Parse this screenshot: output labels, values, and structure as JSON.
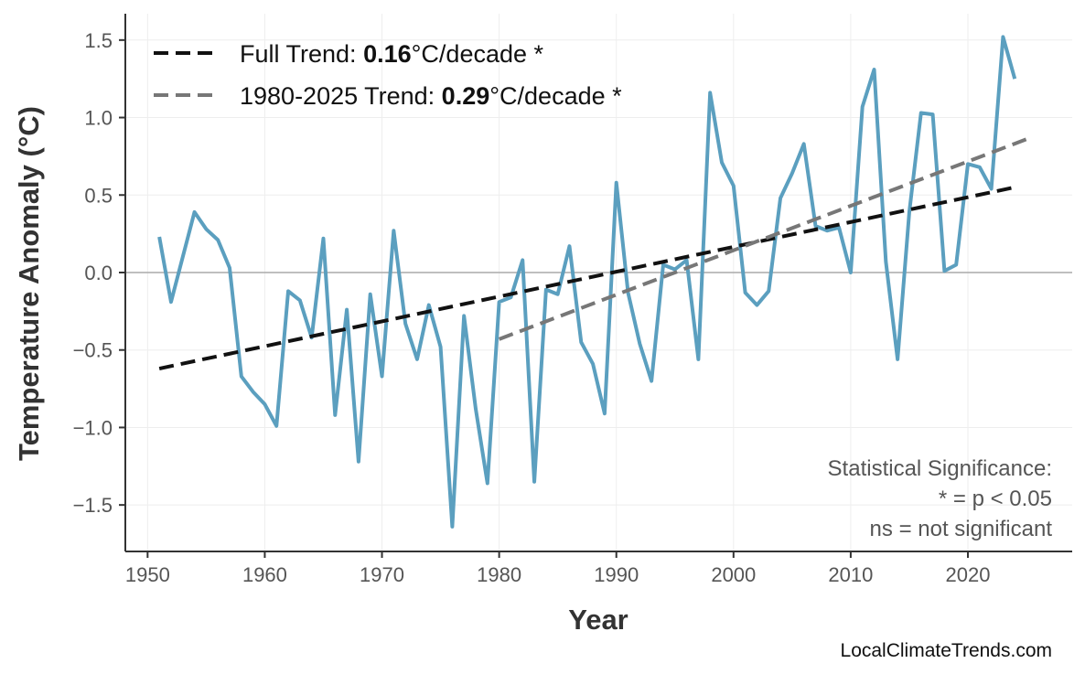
{
  "chart_data": {
    "type": "line",
    "title": "",
    "xlabel": "Year",
    "ylabel": "Temperature Anomaly (°C)",
    "xlim": [
      1948.1,
      2028.9
    ],
    "ylim": [
      -1.8,
      1.67
    ],
    "xticks": [
      1950,
      1960,
      1970,
      1980,
      1990,
      2000,
      2010,
      2020
    ],
    "yticks": [
      -1.5,
      -1.0,
      -0.5,
      0.0,
      0.5,
      1.0,
      1.5
    ],
    "ytick_labels": [
      "−1.5",
      "−1.0",
      "−0.5",
      "0.0",
      "0.5",
      "1.0",
      "1.5"
    ],
    "grid": true,
    "zero_line": true,
    "series": [
      {
        "color": "#5b9fbf",
        "x": [
          1951,
          1952,
          1953,
          1954,
          1955,
          1956,
          1957,
          1958,
          1959,
          1960,
          1961,
          1962,
          1963,
          1964,
          1965,
          1966,
          1967,
          1968,
          1969,
          1970,
          1971,
          1972,
          1973,
          1974,
          1975,
          1976,
          1977,
          1978,
          1979,
          1980,
          1981,
          1982,
          1983,
          1984,
          1985,
          1986,
          1987,
          1988,
          1989,
          1990,
          1991,
          1992,
          1993,
          1994,
          1995,
          1996,
          1997,
          1998,
          1999,
          2000,
          2001,
          2002,
          2003,
          2004,
          2005,
          2006,
          2007,
          2008,
          2009,
          2010,
          2011,
          2012,
          2013,
          2014,
          2015,
          2016,
          2017,
          2018,
          2019,
          2020,
          2021,
          2022,
          2023,
          2024
        ],
        "y": [
          0.23,
          -0.19,
          0.1,
          0.39,
          0.28,
          0.21,
          0.03,
          -0.67,
          -0.77,
          -0.85,
          -0.99,
          -0.12,
          -0.18,
          -0.42,
          0.22,
          -0.92,
          -0.24,
          -1.22,
          -0.14,
          -0.67,
          0.27,
          -0.33,
          -0.56,
          -0.21,
          -0.48,
          -1.64,
          -0.28,
          -0.88,
          -1.36,
          -0.19,
          -0.16,
          0.08,
          -1.35,
          -0.11,
          -0.14,
          0.17,
          -0.45,
          -0.59,
          -0.91,
          0.58,
          -0.13,
          -0.46,
          -0.7,
          0.05,
          0.02,
          0.08,
          -0.56,
          1.16,
          0.71,
          0.56,
          -0.13,
          -0.21,
          -0.12,
          0.48,
          0.64,
          0.83,
          0.3,
          0.27,
          0.29,
          0.0,
          1.07,
          1.31,
          0.07,
          -0.56,
          0.39,
          1.03,
          1.02,
          0.01,
          0.05,
          0.7,
          0.68,
          0.54,
          1.52,
          1.25
        ]
      }
    ],
    "trends": [
      {
        "label_prefix": "Full Trend: ",
        "value": "0.16",
        "label_suffix": "°C/decade *",
        "color": "#111111",
        "x": [
          1951,
          2024
        ],
        "y": [
          -0.62,
          0.55
        ]
      },
      {
        "label_prefix": "1980-2025 Trend: ",
        "value": "0.29",
        "label_suffix": "°C/decade *",
        "color": "#777777",
        "x": [
          1980,
          2025
        ],
        "y": [
          -0.43,
          0.86
        ]
      }
    ],
    "legend_position": "top-left",
    "annotation": [
      "Statistical Significance:",
      "* = p < 0.05",
      "ns = not significant"
    ]
  },
  "watermark": "LocalClimateTrends.com"
}
